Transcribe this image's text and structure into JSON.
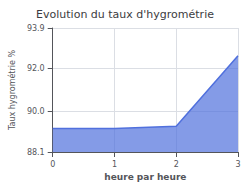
{
  "chart_data": {
    "type": "area",
    "title": "Evolution du taux d'hygrométrie",
    "x_label": "heure par heure",
    "y_label": "Taux hygrométrie %",
    "x": [
      0,
      1,
      2,
      3
    ],
    "values": [
      89.2,
      89.2,
      89.3,
      92.6
    ],
    "xlim": [
      0,
      3
    ],
    "xticks": [
      0,
      1,
      2,
      3
    ],
    "ylim": [
      88.1,
      93.9
    ],
    "yticks": [
      88.1,
      {
        "value": 90,
        "label": "90.0"
      },
      {
        "value": 92,
        "label": "92.0"
      },
      93.9
    ],
    "grid": true
  }
}
